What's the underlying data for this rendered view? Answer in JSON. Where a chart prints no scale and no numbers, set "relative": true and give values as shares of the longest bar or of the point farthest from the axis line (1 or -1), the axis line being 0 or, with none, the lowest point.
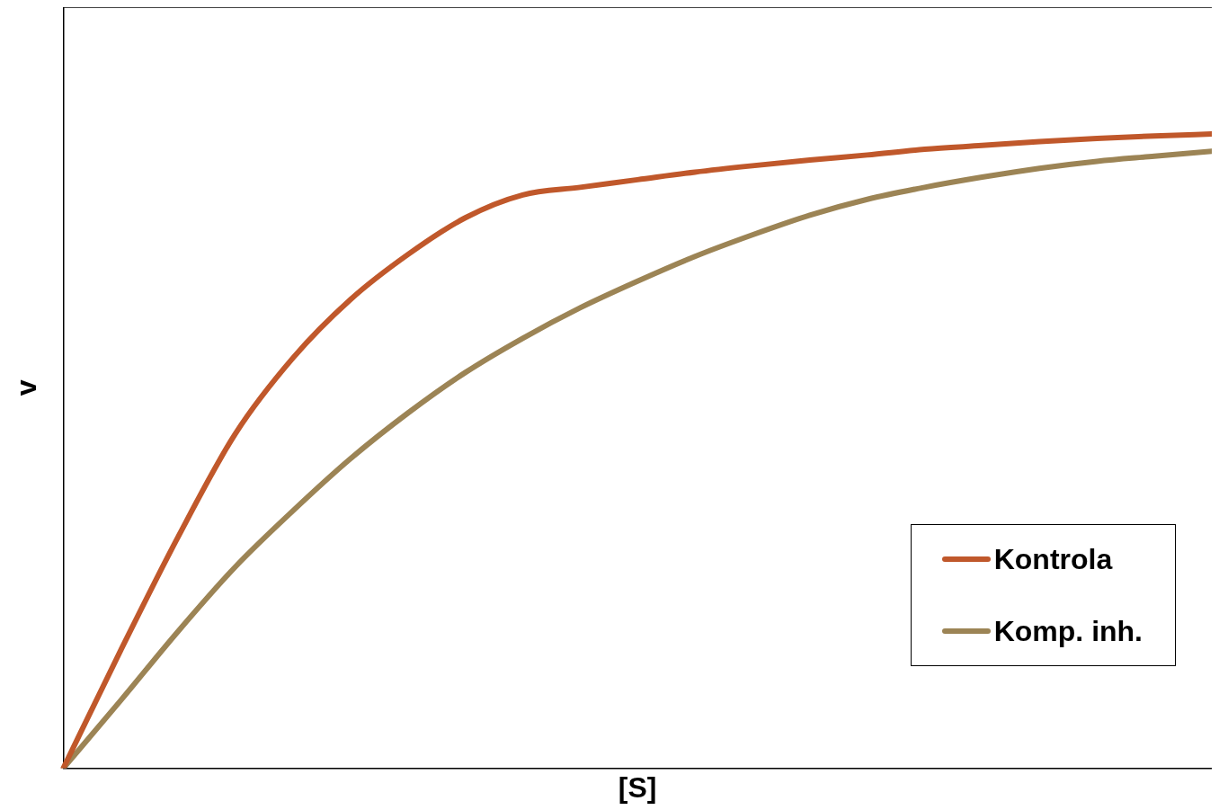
{
  "chart_data": {
    "type": "line",
    "xlabel": "[S]",
    "ylabel": "v",
    "relative": true,
    "legend": "bottom right",
    "grid": false,
    "marker": "none",
    "line_style": "solid",
    "categories": [
      null,
      null,
      null,
      null,
      null,
      null,
      null,
      null,
      null,
      null,
      null,
      null,
      null,
      null,
      null,
      null,
      null,
      null,
      null,
      null,
      null
    ],
    "series": [
      {
        "name": "Kontrola",
        "color": "#c0582b",
        "values": [
          0,
          0.186,
          0.365,
          0.528,
          0.647,
          0.739,
          0.81,
          0.868,
          0.904,
          0.916,
          0.928,
          0.94,
          0.95,
          0.959,
          0.967,
          0.976,
          0.982,
          0.988,
          0.993,
          0.997,
          1
        ]
      },
      {
        "name": "Komp. inh.",
        "color": "#9c8455",
        "values": [
          0,
          0.107,
          0.216,
          0.318,
          0.406,
          0.488,
          0.56,
          0.624,
          0.678,
          0.726,
          0.768,
          0.807,
          0.841,
          0.872,
          0.897,
          0.916,
          0.932,
          0.946,
          0.957,
          0.965,
          0.973
        ]
      }
    ]
  }
}
